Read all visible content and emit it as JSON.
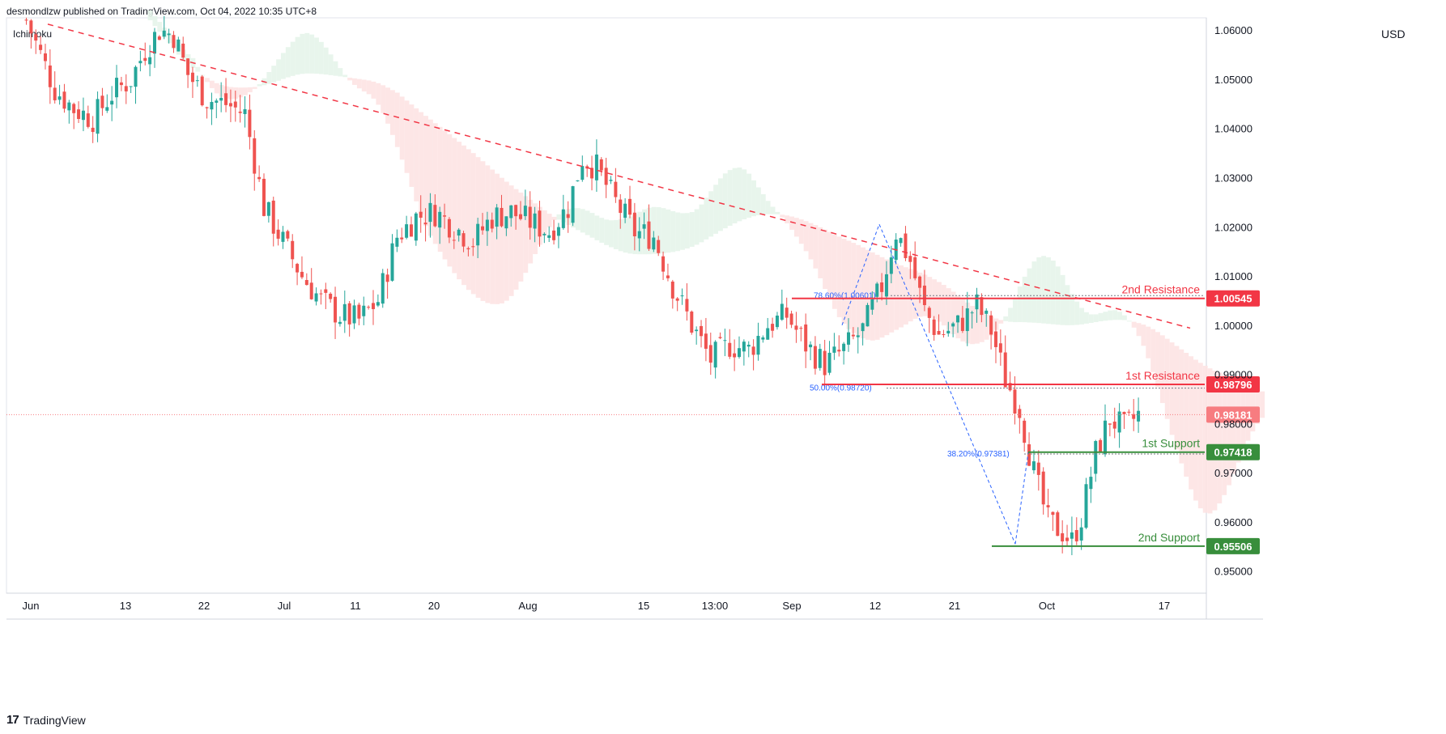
{
  "header": {
    "publisher": "desmondlzw published on TradingView.com, Oct 04, 2022 10:35 UTC+8"
  },
  "indicator": "Ichimoku",
  "currency": "USD",
  "footer": {
    "logo": "17",
    "brand": "TradingView"
  },
  "colors": {
    "up": "#26a69a",
    "down": "#ef5350",
    "resistance": "#f23645",
    "support": "#388e3c",
    "fib": "#2962ff",
    "current": "#f77c80",
    "cloud_green": "#e6f4ea",
    "cloud_red": "#fde3e3"
  },
  "chart_data": {
    "type": "candlestick",
    "ylim": [
      0.9455,
      1.0625
    ],
    "y_ticks": [
      "1.06000",
      "1.05000",
      "1.04000",
      "1.03000",
      "1.02000",
      "1.01000",
      "1.00000",
      "0.99000",
      "0.98000",
      "0.97000",
      "0.96000",
      "0.95000"
    ],
    "x_ticks": [
      "Jun",
      "13",
      "22",
      "Jul",
      "11",
      "20",
      "Aug",
      "15",
      "13:00",
      "Sep",
      "12",
      "21",
      "Oct",
      "17"
    ],
    "close_path": [
      [
        0,
        1.062
      ],
      [
        6,
        1.048
      ],
      [
        10,
        1.044
      ],
      [
        14,
        1.042
      ],
      [
        18,
        1.047
      ],
      [
        22,
        1.05
      ],
      [
        25,
        1.056
      ],
      [
        28,
        1.06
      ],
      [
        31,
        1.059
      ],
      [
        34,
        1.051
      ],
      [
        38,
        1.046
      ],
      [
        42,
        1.045
      ],
      [
        46,
        1.043
      ],
      [
        50,
        1.024
      ],
      [
        54,
        1.017
      ],
      [
        58,
        1.01
      ],
      [
        62,
        1.005
      ],
      [
        66,
        1.002
      ],
      [
        70,
        1.001
      ],
      [
        74,
        1.005
      ],
      [
        78,
        1.018
      ],
      [
        82,
        1.022
      ],
      [
        86,
        1.023
      ],
      [
        90,
        1.02
      ],
      [
        94,
        1.017
      ],
      [
        98,
        1.022
      ],
      [
        102,
        1.023
      ],
      [
        106,
        1.021
      ],
      [
        110,
        1.019
      ],
      [
        114,
        1.024
      ],
      [
        117,
        1.034
      ],
      [
        120,
        1.032
      ],
      [
        124,
        1.025
      ],
      [
        128,
        1.019
      ],
      [
        132,
        1.018
      ],
      [
        136,
        1.008
      ],
      [
        140,
        1.0
      ],
      [
        144,
        0.993
      ],
      [
        148,
        0.996
      ],
      [
        152,
        0.995
      ],
      [
        156,
        1.0
      ],
      [
        160,
        1.002
      ],
      [
        164,
        0.996
      ],
      [
        168,
        0.992
      ],
      [
        172,
        0.995
      ],
      [
        176,
        0.999
      ],
      [
        180,
        1.008
      ],
      [
        183,
        1.019
      ],
      [
        186,
        1.013
      ],
      [
        189,
        1.003
      ],
      [
        192,
        0.998
      ],
      [
        196,
        1.0
      ],
      [
        200,
        1.004
      ],
      [
        203,
        0.999
      ],
      [
        206,
        0.989
      ],
      [
        209,
        0.983
      ],
      [
        212,
        0.97
      ],
      [
        215,
        0.96
      ],
      [
        218,
        0.958
      ],
      [
        220,
        0.956
      ],
      [
        222,
        0.961
      ],
      [
        225,
        0.974
      ],
      [
        228,
        0.981
      ],
      [
        231,
        0.979
      ],
      [
        234,
        0.9818
      ]
    ],
    "levels": [
      {
        "name": "2nd Resistance",
        "price": 1.00545,
        "label": "1.00545",
        "kind": "resistance"
      },
      {
        "name": "1st Resistance",
        "price": 0.98796,
        "label": "0.98796",
        "kind": "resistance"
      },
      {
        "name": "1st Support",
        "price": 0.97418,
        "label": "0.97418",
        "kind": "support"
      },
      {
        "name": "2nd Support",
        "price": 0.95506,
        "label": "0.95506",
        "kind": "support"
      }
    ],
    "current_price": {
      "price": 0.98181,
      "label": "0.98181"
    },
    "fib_labels": [
      {
        "text": "78.60%(1.00601)",
        "price": 1.00601
      },
      {
        "text": "50.00%(0.98720)",
        "price": 0.9872
      },
      {
        "text": "38.20%(0.97381)",
        "price": 0.97381
      }
    ],
    "trendline": {
      "start": [
        59,
        1.0612
      ],
      "end": [
        1470,
        0.9994
      ]
    }
  }
}
